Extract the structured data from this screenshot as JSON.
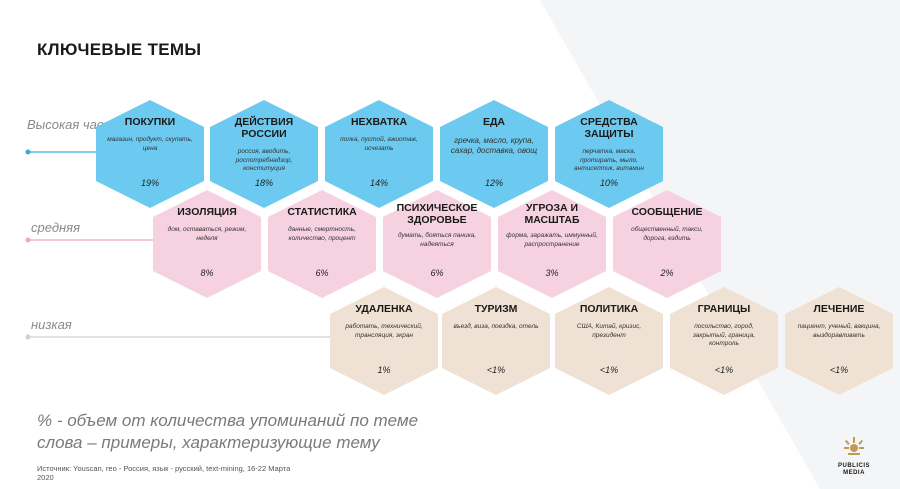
{
  "title": "КЛЮЧЕВЫЕ ТЕМЫ",
  "row_labels": {
    "high": "Высокая частота",
    "mid": "средняя",
    "low": "низкая"
  },
  "colors": {
    "high": "#6cc9ef",
    "mid": "#f6d2e0",
    "low": "#efe1d4",
    "high_line": "#3aa7de",
    "mid_line": "#f2a6c4",
    "low_line": "#d0d0d0"
  },
  "high": [
    {
      "name": "ПОКУПКИ",
      "words": "магазин, продукт, скупать, цена",
      "pct": "19%"
    },
    {
      "name": "ДЕЙСТВИЯ РОССИИ",
      "words": "россия, вводить, роспотребнадзор, конституция",
      "pct": "18%"
    },
    {
      "name": "НЕХВАТКА",
      "words": "полка, пустой, ажиотаж, исчезать",
      "pct": "14%"
    },
    {
      "name": "ЕДА",
      "words": "гречка, масло, крупа, сахар, доставка, овощ",
      "pct": "12%"
    },
    {
      "name": "СРЕДСТВА ЗАЩИТЫ",
      "words": "перчатка, маска, протирать, мыло, антисептик, витамин",
      "pct": "10%"
    }
  ],
  "mid": [
    {
      "name": "ИЗОЛЯЦИЯ",
      "words": "дом, оставаться, режим, неделя",
      "pct": "8%"
    },
    {
      "name": "СТАТИСТИКА",
      "words": "данные, смертность, количество, процент",
      "pct": "6%"
    },
    {
      "name": "ПСИХИЧЕСКОЕ ЗДОРОВЬЕ",
      "words": "думать, бояться паника, надеяться",
      "pct": "6%"
    },
    {
      "name": "УГРОЗА И МАСШТАБ",
      "words": "форма, заражать, иммунный, распространение",
      "pct": "3%"
    },
    {
      "name": "СООБЩЕНИЕ",
      "words": "общественный, такси, дорога, ездить",
      "pct": "2%"
    }
  ],
  "low": [
    {
      "name": "УДАЛЕНКА",
      "words": "работать, технический, трансляция, экран",
      "pct": "1%"
    },
    {
      "name": "ТУРИЗМ",
      "words": "въезд, виза, поездка, отель",
      "pct": "<1%"
    },
    {
      "name": "ПОЛИТИКА",
      "words": "США, Китай, кризис, президент",
      "pct": "<1%"
    },
    {
      "name": "ГРАНИЦЫ",
      "words": "посольство, город, закрытый, граница, контроль",
      "pct": "<1%"
    },
    {
      "name": "ЛЕЧЕНИЕ",
      "words": "пациент, ученый, вакцина, выздоравливать",
      "pct": "<1%"
    }
  ],
  "legend": {
    "line1": "% - объем от количества упоминаний по теме",
    "line2": "слова  – примеры, характеризующие тему"
  },
  "source": {
    "line1": "Источник: Youscan, гео - Россия, язык - русский, text-mining, 16-22 Марта",
    "line2": "2020"
  },
  "logo": {
    "line1": "PUBLICIS",
    "line2": "MEDIA"
  }
}
